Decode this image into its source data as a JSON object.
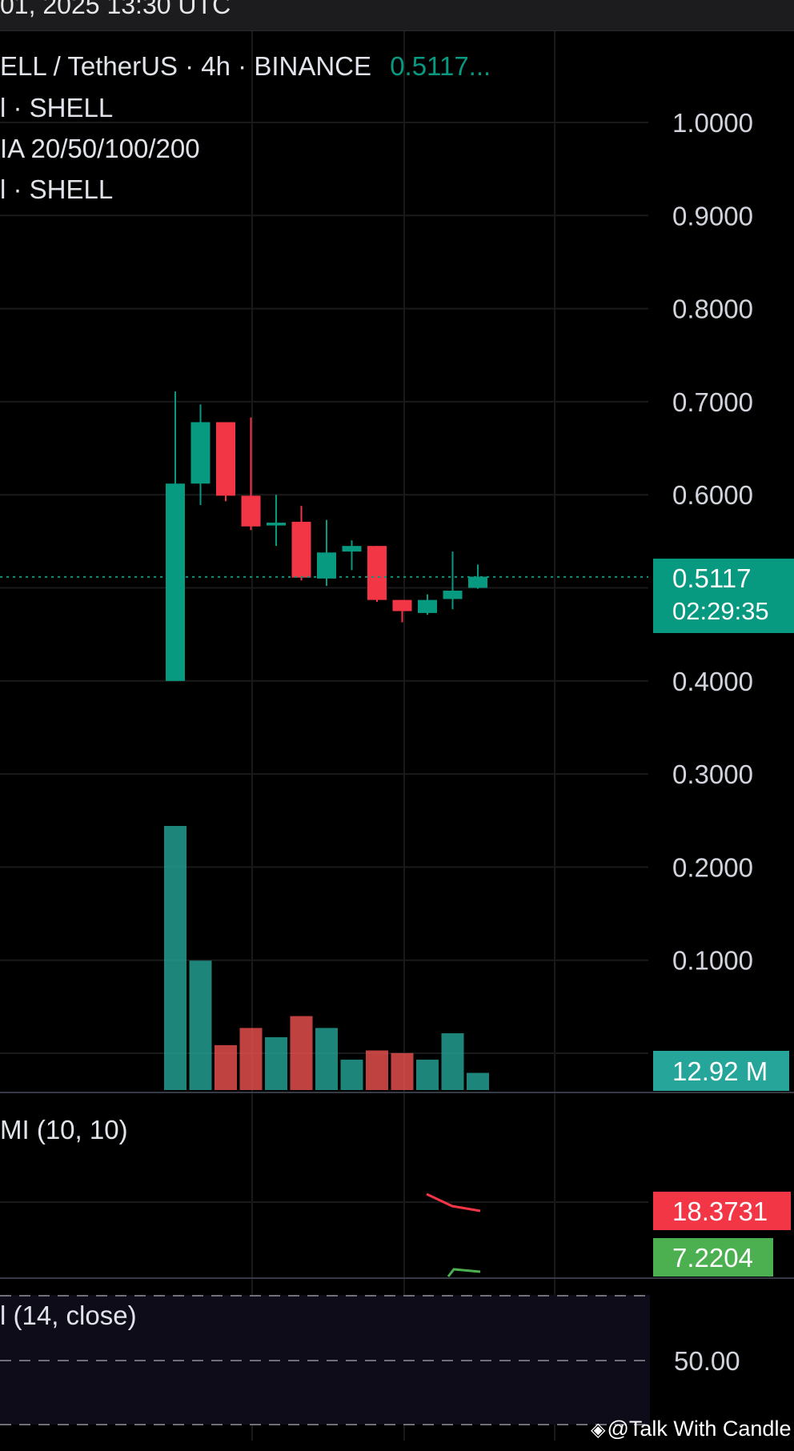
{
  "header": {
    "datetime": "01, 2025 13:30 UTC",
    "symbol_line": "ELL / TetherUS · 4h · BINANCE",
    "last_price": "0.5117...",
    "indicator_1": "l · SHELL",
    "indicator_2": "IA 20/50/100/200",
    "indicator_3": "l · SHELL"
  },
  "price_label": {
    "price": "0.5117",
    "countdown": "02:29:35"
  },
  "volume_label": "12.92 M",
  "dmi": {
    "title": "MI (10, 10)",
    "value_red": "18.3731",
    "value_green": "7.2204"
  },
  "rsi": {
    "title": "l (14, close)",
    "level": "50.00"
  },
  "watermark": "@Talk With Candle",
  "colors": {
    "up": "#089981",
    "down": "#f23645",
    "vol_up": "#26a69a",
    "vol_down": "#ef5350",
    "dmi_red": "#f23645",
    "dmi_green": "#4caf50"
  },
  "chart_data": {
    "type": "candlestick",
    "y_axis_ticks": [
      "1.0000",
      "0.9000",
      "0.8000",
      "0.7000",
      "0.6000",
      "0.4000",
      "0.3000",
      "0.2000",
      "0.1000"
    ],
    "ylim": [
      0,
      1.0
    ],
    "current_price": 0.5117,
    "candles": [
      {
        "open": 0.4,
        "high": 0.711,
        "low": 0.4,
        "close": 0.612,
        "volume": 1.0
      },
      {
        "open": 0.612,
        "high": 0.697,
        "low": 0.589,
        "close": 0.678,
        "volume": 0.49
      },
      {
        "open": 0.678,
        "high": 0.678,
        "low": 0.593,
        "close": 0.599,
        "volume": 0.17
      },
      {
        "open": 0.599,
        "high": 0.683,
        "low": 0.562,
        "close": 0.566,
        "volume": 0.235
      },
      {
        "open": 0.567,
        "high": 0.6,
        "low": 0.545,
        "close": 0.57,
        "volume": 0.2
      },
      {
        "open": 0.571,
        "high": 0.588,
        "low": 0.508,
        "close": 0.511,
        "volume": 0.28
      },
      {
        "open": 0.51,
        "high": 0.573,
        "low": 0.502,
        "close": 0.538,
        "volume": 0.235
      },
      {
        "open": 0.539,
        "high": 0.551,
        "low": 0.519,
        "close": 0.545,
        "volume": 0.115
      },
      {
        "open": 0.545,
        "high": 0.545,
        "low": 0.485,
        "close": 0.487,
        "volume": 0.15
      },
      {
        "open": 0.487,
        "high": 0.487,
        "low": 0.463,
        "close": 0.475,
        "volume": 0.14
      },
      {
        "open": 0.473,
        "high": 0.493,
        "low": 0.471,
        "close": 0.487,
        "volume": 0.115
      },
      {
        "open": 0.488,
        "high": 0.539,
        "low": 0.477,
        "close": 0.497,
        "volume": 0.215
      },
      {
        "open": 0.5,
        "high": 0.525,
        "low": 0.499,
        "close": 0.512,
        "volume": 0.065
      }
    ]
  }
}
